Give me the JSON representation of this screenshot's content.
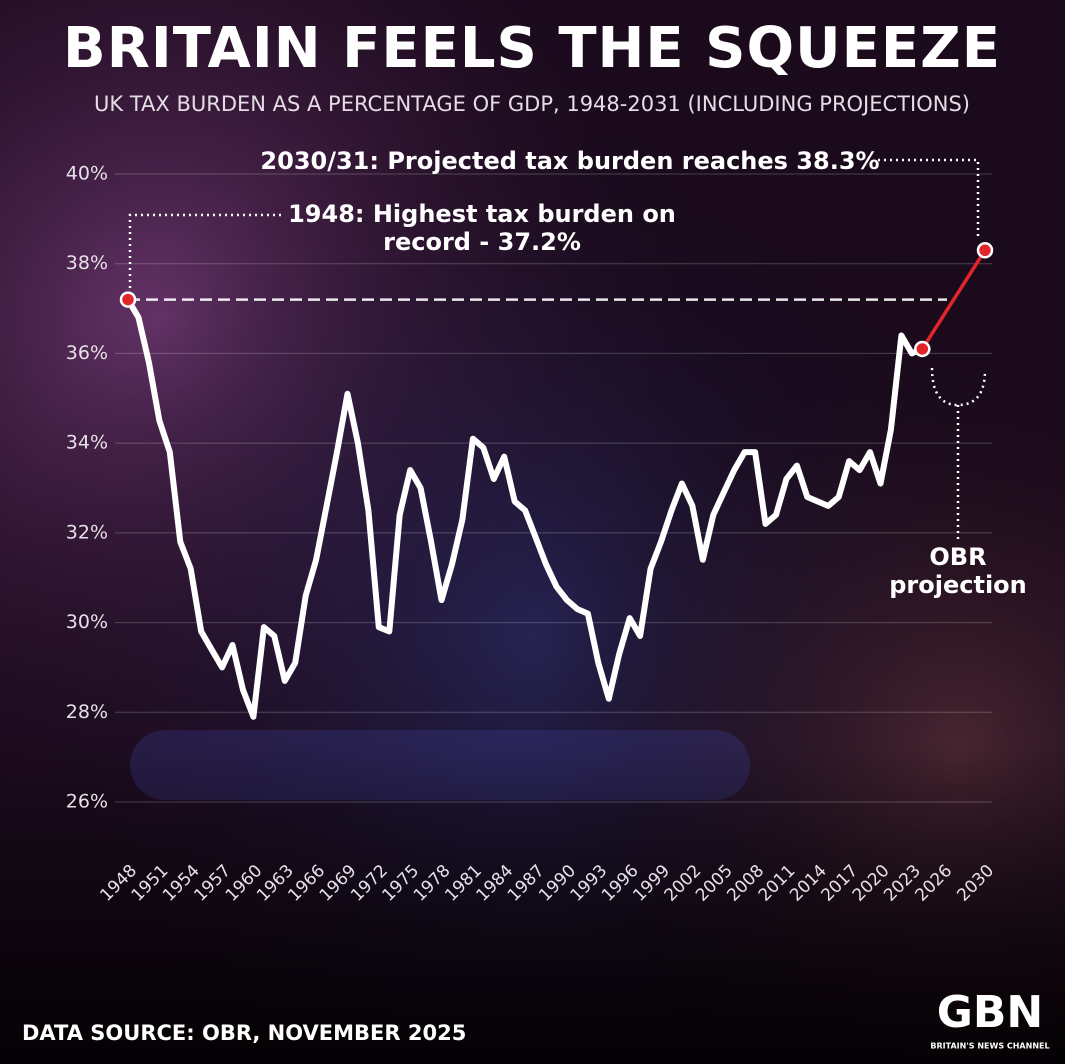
{
  "chart_data": {
    "type": "line",
    "title": "BRITAIN FEELS THE SQUEEZE",
    "subtitle": "UK TAX BURDEN AS A PERCENTAGE OF GDP, 1948-2031 (INCLUDING PROJECTIONS)",
    "annotations": [
      {
        "lines": [
          "2030/31: Projected tax burden reaches 38.3%"
        ]
      },
      {
        "lines": [
          "1948: Highest tax burden on",
          "record - 37.2%"
        ]
      },
      {
        "lines": [
          "OBR",
          "projection"
        ]
      }
    ],
    "source": "DATA SOURCE: OBR, NOVEMBER 2025",
    "logo": {
      "text": "GBN",
      "tagline": "BRITAIN'S NEWS CHANNEL"
    },
    "series": [
      {
        "color": "#ffffff",
        "x": [
          1948,
          1949,
          1950,
          1951,
          1952,
          1953,
          1954,
          1955,
          1956,
          1957,
          1958,
          1959,
          1960,
          1961,
          1962,
          1963,
          1964,
          1965,
          1966,
          1967,
          1968,
          1969,
          1970,
          1971,
          1972,
          1973,
          1974,
          1975,
          1976,
          1977,
          1978,
          1979,
          1980,
          1981,
          1982,
          1983,
          1984,
          1985,
          1986,
          1987,
          1988,
          1989,
          1990,
          1991,
          1992,
          1993,
          1994,
          1995,
          1996,
          1997,
          1998,
          1999,
          2000,
          2001,
          2002,
          2003,
          2004,
          2005,
          2006,
          2007,
          2008,
          2009,
          2010,
          2011,
          2012,
          2013,
          2014,
          2015,
          2016,
          2017,
          2018,
          2019,
          2020,
          2021,
          2022,
          2023,
          2024
        ],
        "values": [
          37.2,
          36.8,
          35.8,
          34.5,
          33.8,
          31.8,
          31.2,
          29.8,
          29.4,
          29.0,
          29.5,
          28.5,
          27.9,
          29.9,
          29.7,
          28.7,
          29.1,
          30.6,
          31.4,
          32.6,
          33.8,
          35.1,
          34.0,
          32.5,
          29.9,
          29.8,
          32.4,
          33.4,
          33.0,
          31.8,
          30.5,
          31.3,
          32.3,
          34.1,
          33.9,
          33.2,
          33.7,
          32.7,
          32.5,
          31.9,
          31.3,
          30.8,
          30.5,
          30.3,
          30.2,
          29.1,
          28.3,
          29.3,
          30.1,
          29.7,
          31.2,
          31.8,
          32.5,
          33.1,
          32.6,
          31.4,
          32.4,
          32.9,
          33.4,
          33.8,
          33.8,
          32.2,
          32.4,
          33.2,
          33.5,
          32.8,
          32.7,
          32.6,
          32.8,
          33.6,
          33.4,
          33.8,
          33.1,
          34.3,
          36.4,
          36.0,
          36.1
        ]
      },
      {
        "color": "#e0262b",
        "x": [
          2024,
          2030
        ],
        "values": [
          36.1,
          38.3
        ]
      }
    ],
    "xlim": [
      1948,
      2030
    ],
    "xticks": [
      1948,
      1951,
      1954,
      1957,
      1960,
      1963,
      1966,
      1969,
      1972,
      1975,
      1978,
      1981,
      1984,
      1987,
      1990,
      1993,
      1996,
      1999,
      2002,
      2005,
      2008,
      2011,
      2014,
      2017,
      2020,
      2023,
      2026,
      2030
    ],
    "ylim": [
      26,
      40
    ],
    "yticks": [
      {
        "value": 26,
        "label": "26%"
      },
      {
        "value": 28,
        "label": "28%"
      },
      {
        "value": 30,
        "label": "30%"
      },
      {
        "value": 32,
        "label": "32%"
      },
      {
        "value": 34,
        "label": "34%"
      },
      {
        "value": 36,
        "label": "36%"
      },
      {
        "value": 38,
        "label": "38%"
      },
      {
        "value": 40,
        "label": "40%"
      }
    ],
    "grid": true,
    "highlight_color": "#e0262b"
  }
}
